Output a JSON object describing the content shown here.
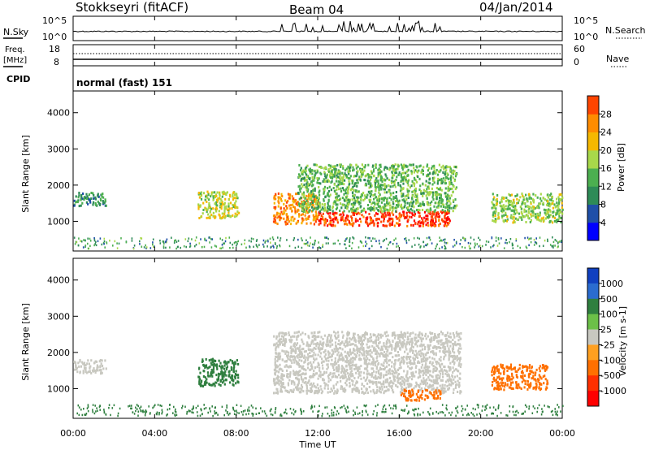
{
  "header": {
    "station": "Stokkseyri (fitACF)",
    "beam": "Beam 04",
    "date": "04/Jan/2014"
  },
  "strip_nsky": {
    "left_label": "N.Sky",
    "right_label": "N.Search",
    "left_ticks": [
      "10^5",
      "10^0"
    ],
    "right_ticks": [
      "10^5",
      "10^0"
    ]
  },
  "strip_freq": {
    "left_label_1": "Freq.",
    "left_label_2": "[MHz]",
    "right_label": "Nave",
    "left_ticks": [
      "18",
      "8"
    ],
    "right_ticks": [
      "60",
      "0"
    ]
  },
  "strip_cpid": {
    "left_label": "CPID",
    "program": "normal (fast) 151"
  },
  "colors": {
    "power_scale": [
      "#0000ff",
      "#1f4fa8",
      "#2e8b57",
      "#4caf50",
      "#a8d84a",
      "#f5b800",
      "#ff8c00",
      "#ff4500",
      "#ff0000"
    ],
    "velocity_scale": [
      "#1040c0",
      "#2a6cd0",
      "#2f7f3f",
      "#6cc048",
      "#c8c8c0",
      "#ffa020",
      "#ff7000",
      "#ff3000",
      "#ff0000"
    ]
  },
  "chart_data": [
    {
      "type": "heatmap",
      "panel": "power",
      "ylabel": "Slant Range [km]",
      "ylim": [
        180,
        4600
      ],
      "yticks": [
        1000,
        2000,
        3000,
        4000
      ],
      "colorbar_label": "Power [dB]",
      "colorbar_ticks": [
        "4",
        "8",
        "12",
        "16",
        "20",
        "24",
        "28"
      ],
      "clim": [
        0,
        30
      ],
      "echo_regions": [
        {
          "t_start": 0.0,
          "t_end": 1.6,
          "r_min": 1450,
          "r_max": 1820,
          "value": 8
        },
        {
          "t_start": 6.1,
          "t_end": 8.1,
          "r_min": 1100,
          "r_max": 1850,
          "value": 16
        },
        {
          "t_start": 9.8,
          "t_end": 12.0,
          "r_min": 950,
          "r_max": 1800,
          "value": 22
        },
        {
          "t_start": 12.0,
          "t_end": 18.5,
          "r_min": 900,
          "r_max": 1300,
          "value": 27
        },
        {
          "t_start": 11.0,
          "t_end": 18.8,
          "r_min": 1300,
          "r_max": 2600,
          "value": 12
        },
        {
          "t_start": 20.5,
          "t_end": 24.0,
          "r_min": 1000,
          "r_max": 1800,
          "value": 14
        }
      ]
    },
    {
      "type": "heatmap",
      "panel": "velocity",
      "ylabel": "Slant Range [km]",
      "ylim": [
        180,
        4600
      ],
      "yticks": [
        1000,
        2000,
        3000,
        4000
      ],
      "xlabel": "Time UT",
      "xticks": [
        "00:00",
        "04:00",
        "08:00",
        "12:00",
        "16:00",
        "20:00",
        "00:00"
      ],
      "xlim_hours": [
        0,
        24
      ],
      "colorbar_label": "Velocity [m s-1]",
      "colorbar_ticks": [
        "1000",
        "500",
        "100",
        "25",
        "-25",
        "-100",
        "-500",
        "-1000"
      ],
      "echo_regions": [
        {
          "t_start": 0.0,
          "t_end": 1.6,
          "r_min": 1450,
          "r_max": 1820,
          "value": 0
        },
        {
          "t_start": 6.1,
          "t_end": 8.1,
          "r_min": 1100,
          "r_max": 1850,
          "value": 150
        },
        {
          "t_start": 9.8,
          "t_end": 19.0,
          "r_min": 900,
          "r_max": 2600,
          "value": 0
        },
        {
          "t_start": 16.0,
          "t_end": 18.0,
          "r_min": 700,
          "r_max": 1000,
          "value": -300
        },
        {
          "t_start": 20.5,
          "t_end": 23.3,
          "r_min": 1000,
          "r_max": 1700,
          "value": -300
        }
      ]
    }
  ]
}
